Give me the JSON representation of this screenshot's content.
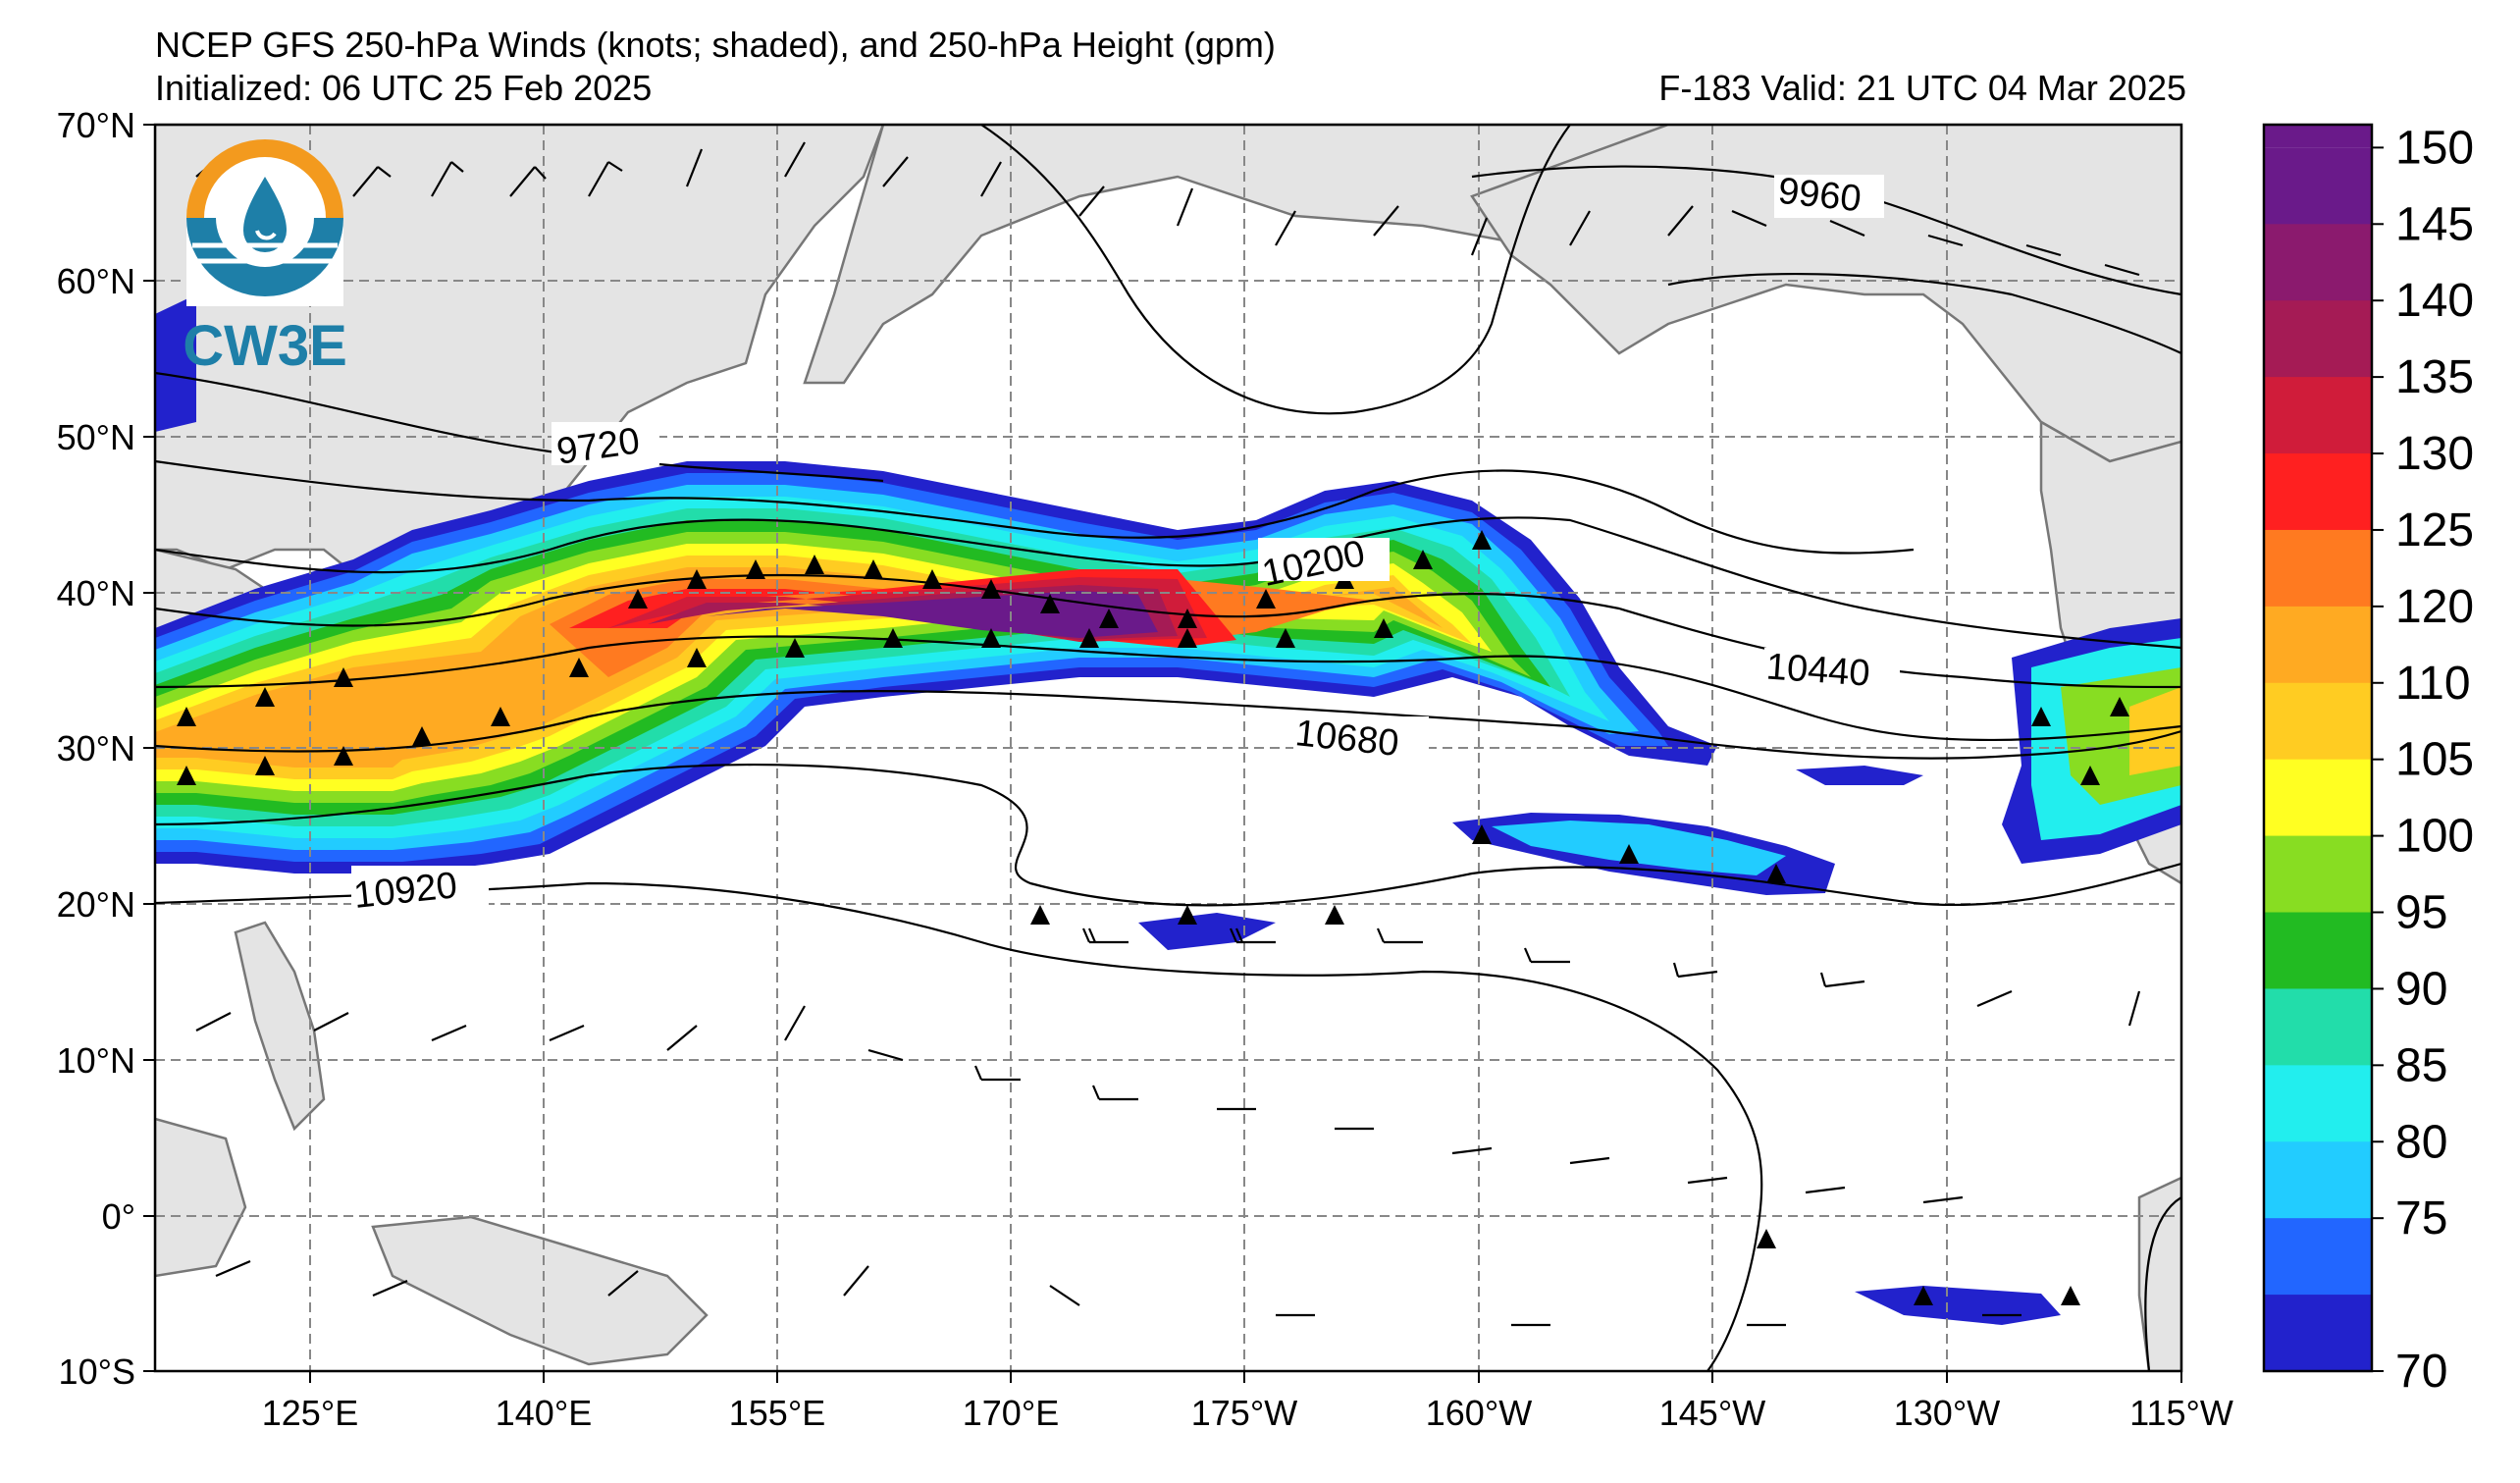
{
  "header": {
    "title": "NCEP GFS 250-hPa Winds (knots; shaded), and 250-hPa Height (gpm)",
    "initialized": "Initialized: 06 UTC 25 Feb 2025",
    "valid": "F-183  Valid: 21 UTC 04 Mar 2025"
  },
  "logo": {
    "text": "CW3E"
  },
  "map": {
    "lat_labels": [
      "70°N",
      "60°N",
      "50°N",
      "40°N",
      "30°N",
      "20°N",
      "10°N",
      "0°",
      "10°S"
    ],
    "lon_labels": [
      "125°E",
      "140°E",
      "155°E",
      "170°E",
      "175°W",
      "160°W",
      "145°W",
      "130°W",
      "115°W"
    ],
    "contour_labels": [
      "9720",
      "9960",
      "10200",
      "10440",
      "10680",
      "10920"
    ]
  },
  "colorbar": {
    "labels": [
      "150",
      "145",
      "140",
      "135",
      "130",
      "125",
      "120",
      "110",
      "105",
      "100",
      "95",
      "90",
      "85",
      "80",
      "75",
      "70"
    ],
    "colors": [
      "#6a1a8a",
      "#8b1a6e",
      "#a51b55",
      "#d01c3a",
      "#ff2020",
      "#ff7a20",
      "#ffaa22",
      "#ffcc22",
      "#ffff22",
      "#88dd22",
      "#22bb22",
      "#22ddaa",
      "#22eeee",
      "#22ccff",
      "#2266ff",
      "#2222cc"
    ]
  },
  "colors": {
    "land": "#e4e4e4",
    "coast": "#777777",
    "grid": "#888888"
  }
}
